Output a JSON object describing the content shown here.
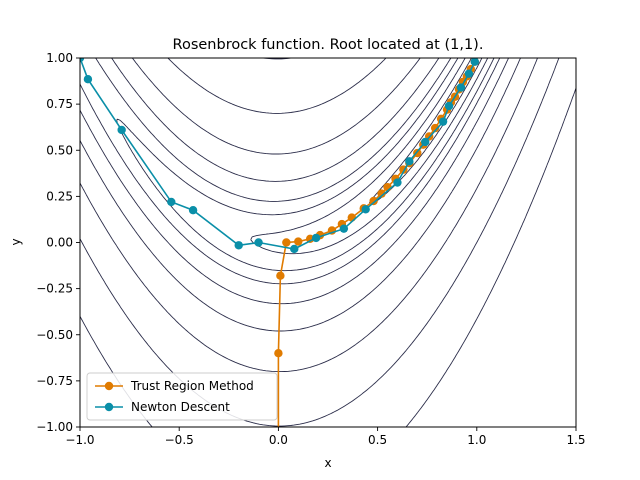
{
  "chart_data": {
    "type": "line",
    "title": "Rosenbrock function. Root located at (1,1).",
    "xlabel": "x",
    "ylabel": "y",
    "xlim": [
      -1.0,
      1.5
    ],
    "ylim": [
      -1.0,
      1.0
    ],
    "x_ticks": [
      -1.0,
      -0.5,
      0.0,
      0.5,
      1.0,
      1.5
    ],
    "x_tick_labels": [
      "−1.0",
      "−0.5",
      "0.0",
      "0.5",
      "1.0",
      "1.5"
    ],
    "y_ticks": [
      -1.0,
      -0.75,
      -0.5,
      -0.25,
      0.0,
      0.25,
      0.5,
      0.75,
      1.0
    ],
    "y_tick_labels": [
      "−1.00",
      "−0.75",
      "−0.50",
      "−0.25",
      "0.00",
      "0.25",
      "0.50",
      "0.75",
      "1.00"
    ],
    "grid": false,
    "legend_position": "lower-left",
    "contour": {
      "function": "rosenbrock",
      "levels": [
        0.3,
        1.3,
        3.3,
        6,
        12,
        24,
        50,
        100,
        200
      ],
      "color": "#2b2d4a"
    },
    "series": [
      {
        "name": "Trust Region Method",
        "color": "#e07b00",
        "marker": "circle",
        "points": [
          [
            0.0,
            -1.0
          ],
          [
            0.0,
            -0.6
          ],
          [
            0.01,
            -0.18
          ],
          [
            0.04,
            0.0
          ],
          [
            0.1,
            0.005
          ],
          [
            0.16,
            0.02
          ],
          [
            0.21,
            0.04
          ],
          [
            0.27,
            0.065
          ],
          [
            0.32,
            0.1
          ],
          [
            0.37,
            0.135
          ],
          [
            0.43,
            0.185
          ],
          [
            0.48,
            0.225
          ],
          [
            0.52,
            0.265
          ],
          [
            0.55,
            0.3
          ],
          [
            0.59,
            0.345
          ],
          [
            0.63,
            0.395
          ],
          [
            0.66,
            0.43
          ],
          [
            0.7,
            0.485
          ],
          [
            0.73,
            0.53
          ],
          [
            0.76,
            0.575
          ],
          [
            0.79,
            0.62
          ],
          [
            0.82,
            0.67
          ],
          [
            0.85,
            0.72
          ],
          [
            0.87,
            0.76
          ],
          [
            0.89,
            0.79
          ],
          [
            0.91,
            0.83
          ],
          [
            0.93,
            0.87
          ],
          [
            0.95,
            0.9
          ],
          [
            0.97,
            0.94
          ],
          [
            0.99,
            0.98
          ]
        ]
      },
      {
        "name": "Newton Descent",
        "color": "#0a8fa8",
        "marker": "circle",
        "points": [
          [
            -1.0,
            1.0
          ],
          [
            -0.96,
            0.885
          ],
          [
            -0.79,
            0.61
          ],
          [
            -0.54,
            0.22
          ],
          [
            -0.43,
            0.175
          ],
          [
            -0.2,
            -0.015
          ],
          [
            -0.1,
            0.0
          ],
          [
            0.08,
            -0.035
          ],
          [
            0.19,
            0.025
          ],
          [
            0.33,
            0.075
          ],
          [
            0.44,
            0.18
          ],
          [
            0.6,
            0.325
          ],
          [
            0.66,
            0.44
          ],
          [
            0.74,
            0.545
          ],
          [
            0.83,
            0.655
          ],
          [
            0.86,
            0.74
          ],
          [
            0.92,
            0.84
          ],
          [
            0.96,
            0.915
          ],
          [
            0.99,
            0.98
          ]
        ]
      }
    ]
  }
}
